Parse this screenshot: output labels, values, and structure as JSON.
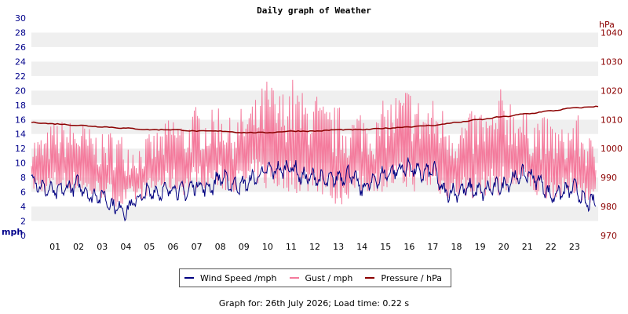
{
  "chart_data": {
    "type": "line",
    "title": "Daily graph of Weather",
    "left_axis": {
      "unit_label": "mph",
      "ylim": [
        0,
        30
      ],
      "ticks": [
        0,
        2,
        4,
        6,
        8,
        10,
        12,
        14,
        16,
        18,
        20,
        22,
        24,
        26,
        28,
        30
      ],
      "color": "#00008b"
    },
    "right_axis": {
      "unit_label": "hPa",
      "ylim": [
        970,
        1045
      ],
      "ticks": [
        970,
        980,
        990,
        1000,
        1010,
        1020,
        1030,
        1040
      ],
      "color": "#8b0000"
    },
    "x_ticks": [
      "01",
      "02",
      "03",
      "04",
      "05",
      "06",
      "07",
      "08",
      "09",
      "10",
      "11",
      "12",
      "13",
      "14",
      "15",
      "16",
      "17",
      "18",
      "19",
      "20",
      "21",
      "22",
      "23"
    ],
    "xlim_hours": [
      0,
      24
    ],
    "grid": "horizontal bands",
    "legend_placement": "bottom-center",
    "series": [
      {
        "name": "Wind Speed /mph",
        "color": "#000080",
        "axis": "left",
        "x": [
          0,
          0.5,
          1,
          1.5,
          2,
          2.5,
          3,
          3.5,
          4,
          4.5,
          5,
          5.5,
          6,
          6.5,
          7,
          7.5,
          8,
          8.5,
          9,
          9.5,
          10,
          10.5,
          11,
          11.5,
          12,
          12.5,
          13,
          13.5,
          14,
          14.5,
          15,
          15.5,
          16,
          16.5,
          17,
          17.5,
          18,
          18.5,
          19,
          19.5,
          20,
          20.5,
          21,
          21.5,
          22,
          22.5,
          23,
          23.5,
          23.9
        ],
        "y": [
          8,
          6.5,
          6,
          6.5,
          7,
          5.5,
          5.5,
          4,
          3.5,
          5,
          6,
          6,
          6.5,
          6,
          7,
          6.5,
          8,
          7,
          7,
          8,
          9,
          9,
          9.5,
          8,
          8,
          7.5,
          8,
          8.5,
          6.5,
          7.5,
          8.5,
          9,
          9.5,
          8.5,
          9,
          6,
          6,
          6.5,
          6,
          6.5,
          7,
          8,
          8.5,
          7.5,
          5.5,
          6,
          6.5,
          4.5,
          4.5
        ]
      },
      {
        "name": "Gust / mph",
        "color": "#f47a9c",
        "axis": "left",
        "x": [
          0,
          0.5,
          1,
          1.5,
          2,
          2.5,
          3,
          3.5,
          4,
          4.5,
          5,
          5.5,
          6,
          6.5,
          7,
          7.5,
          8,
          8.5,
          9,
          9.5,
          10,
          10.5,
          11,
          11.5,
          12,
          12.5,
          13,
          13.5,
          14,
          14.5,
          15,
          15.5,
          16,
          16.5,
          17,
          17.5,
          18,
          18.5,
          19,
          19.5,
          20,
          20.5,
          21,
          21.5,
          22,
          22.5,
          23,
          23.5,
          23.9
        ],
        "low": [
          6,
          5.5,
          6,
          6,
          6,
          5,
          5,
          4,
          3.5,
          4.5,
          5.5,
          6,
          6,
          5.5,
          6.5,
          6.5,
          6,
          6,
          6,
          7,
          6,
          6,
          6,
          5.5,
          6,
          5,
          4,
          5,
          5.5,
          6,
          6,
          6,
          6,
          6,
          6,
          5,
          5,
          5,
          5,
          6,
          5,
          6,
          6,
          5,
          5,
          5,
          5.5,
          4.5,
          4.5
        ],
        "high": [
          14,
          14,
          16,
          16,
          16,
          15,
          14,
          15,
          14,
          13,
          14,
          15,
          17,
          16,
          18,
          17,
          19,
          16,
          18,
          19,
          22,
          20,
          22,
          20,
          20,
          18,
          18,
          17,
          18,
          16,
          19,
          20,
          21,
          19,
          19,
          18,
          16,
          17,
          18,
          17,
          21,
          19,
          17,
          17,
          16,
          15,
          17,
          15,
          12
        ]
      },
      {
        "name": "Pressure / hPa",
        "color": "#8b0000",
        "axis": "right",
        "x": [
          0,
          1,
          2,
          3,
          4,
          5,
          6,
          7,
          8,
          9,
          10,
          11,
          12,
          13,
          14,
          15,
          16,
          17,
          18,
          19,
          20,
          21,
          22,
          23,
          24
        ],
        "y": [
          1009,
          1008.5,
          1008,
          1007.5,
          1007,
          1006.5,
          1006.5,
          1006,
          1006,
          1005.5,
          1005.5,
          1006,
          1006,
          1006.5,
          1006.5,
          1007,
          1007.5,
          1008,
          1009,
          1010,
          1011,
          1012,
          1013,
          1014,
          1014.5
        ]
      }
    ]
  },
  "footer": {
    "text": "Graph for: 26th July 2026; Load time: 0.22 s"
  }
}
